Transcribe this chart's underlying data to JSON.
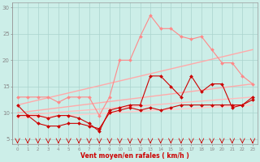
{
  "background_color": "#cceee8",
  "grid_color": "#aad4ce",
  "xlabel": "Vent moyen/en rafales ( km/h )",
  "xlabel_color": "#cc0000",
  "ylabel_values": [
    5,
    10,
    15,
    20,
    25,
    30
  ],
  "xlim": [
    -0.5,
    23.5
  ],
  "ylim": [
    4.0,
    31.0
  ],
  "xticks": [
    0,
    1,
    2,
    3,
    4,
    5,
    6,
    7,
    8,
    9,
    10,
    11,
    12,
    13,
    14,
    15,
    16,
    17,
    18,
    19,
    20,
    21,
    22,
    23
  ],
  "lines": [
    {
      "x": [
        0,
        1,
        2,
        3,
        4,
        5,
        6,
        7,
        8,
        9,
        10,
        11,
        12,
        13,
        14,
        15,
        16,
        17,
        18,
        19,
        20,
        21,
        22,
        23
      ],
      "y": [
        11.5,
        9.5,
        9.5,
        9.0,
        9.5,
        9.5,
        9.0,
        8.0,
        6.5,
        10.5,
        11.0,
        11.5,
        11.5,
        17.0,
        17.0,
        15.0,
        13.0,
        17.0,
        14.0,
        15.5,
        15.5,
        11.0,
        11.5,
        13.0
      ],
      "color": "#cc0000",
      "linewidth": 0.8,
      "marker": "D",
      "markersize": 2.0
    },
    {
      "x": [
        0,
        1,
        2,
        3,
        4,
        5,
        6,
        7,
        8,
        9,
        10,
        11,
        12,
        13,
        14,
        15,
        16,
        17,
        18,
        19,
        20,
        21,
        22,
        23
      ],
      "y": [
        9.5,
        9.5,
        8.0,
        7.5,
        7.5,
        8.0,
        8.0,
        7.5,
        7.0,
        10.0,
        10.5,
        11.0,
        10.5,
        11.0,
        10.5,
        11.0,
        11.5,
        11.5,
        11.5,
        11.5,
        11.5,
        11.5,
        11.5,
        12.5
      ],
      "color": "#cc0000",
      "linewidth": 0.8,
      "marker": "D",
      "markersize": 2.0
    },
    {
      "x": [
        0,
        1,
        2,
        3,
        4,
        5,
        6,
        7,
        8,
        9,
        10,
        11,
        12,
        13,
        14,
        15,
        16,
        17,
        18,
        19,
        20,
        21,
        22,
        23
      ],
      "y": [
        13.0,
        13.0,
        13.0,
        13.0,
        12.0,
        13.0,
        13.0,
        13.0,
        9.5,
        13.0,
        20.0,
        20.0,
        24.5,
        28.5,
        26.0,
        26.0,
        24.5,
        24.0,
        24.5,
        22.0,
        19.5,
        19.5,
        17.0,
        15.5
      ],
      "color": "#ff8888",
      "linewidth": 0.8,
      "marker": "D",
      "markersize": 2.0
    },
    {
      "x": [
        0,
        23
      ],
      "y": [
        11.5,
        22.0
      ],
      "color": "#ffaaaa",
      "linewidth": 1.0,
      "marker": null,
      "markersize": 0
    },
    {
      "x": [
        0,
        23
      ],
      "y": [
        10.0,
        15.5
      ],
      "color": "#ffaaaa",
      "linewidth": 1.0,
      "marker": null,
      "markersize": 0
    },
    {
      "x": [
        0,
        23
      ],
      "y": [
        9.5,
        13.0
      ],
      "color": "#ffbbbb",
      "linewidth": 1.0,
      "marker": null,
      "markersize": 0
    },
    {
      "x": [
        0,
        23
      ],
      "y": [
        9.0,
        11.5
      ],
      "color": "#ffcccc",
      "linewidth": 1.0,
      "marker": null,
      "markersize": 0
    }
  ],
  "wind_arrows": {
    "x": [
      0,
      1,
      2,
      3,
      4,
      5,
      6,
      7,
      8,
      9,
      10,
      11,
      12,
      13,
      14,
      15,
      16,
      17,
      18,
      19,
      20,
      21,
      22,
      23
    ],
    "y": 4.5,
    "color": "#cc0000",
    "angles": [
      210,
      210,
      210,
      220,
      220,
      220,
      230,
      230,
      240,
      240,
      250,
      250,
      260,
      260,
      270,
      270,
      280,
      280,
      290,
      290,
      300,
      300,
      310,
      310
    ]
  }
}
